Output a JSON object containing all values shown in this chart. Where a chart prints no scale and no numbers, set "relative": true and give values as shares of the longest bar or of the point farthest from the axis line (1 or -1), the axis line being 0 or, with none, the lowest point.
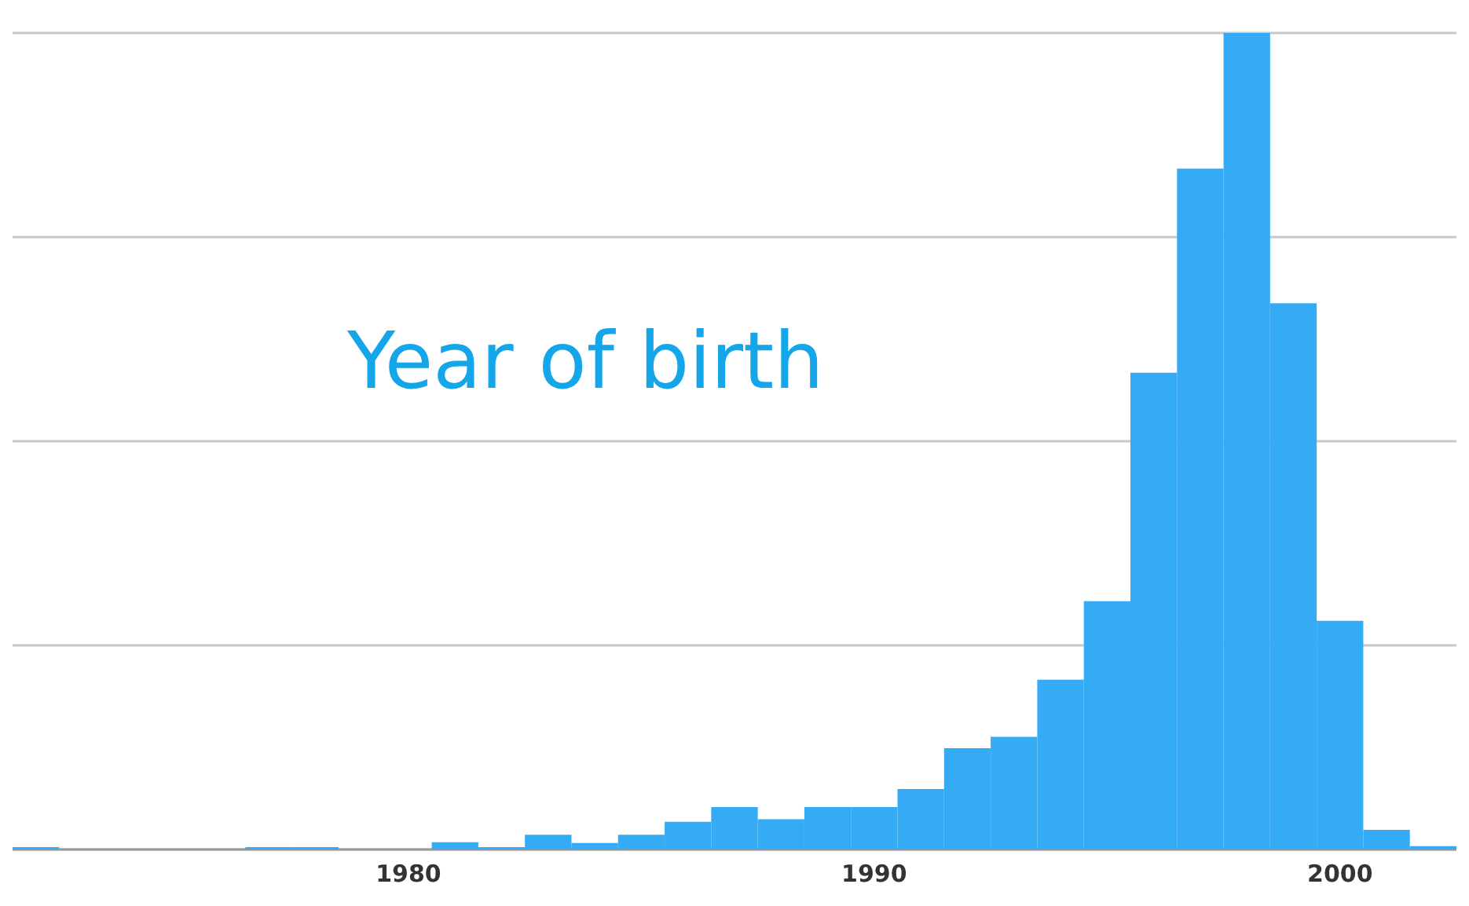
{
  "chart_data": {
    "type": "bar",
    "title": "Year of birth",
    "relative": true,
    "color": "#35abf5",
    "grid": "y",
    "categories": [
      null,
      null,
      null,
      null,
      null,
      null,
      null,
      null,
      "1980",
      null,
      null,
      null,
      null,
      null,
      null,
      null,
      null,
      null,
      "1990",
      null,
      null,
      null,
      null,
      null,
      null,
      null,
      null,
      null,
      "2000",
      null,
      null
    ],
    "values": [
      0.003,
      0,
      0,
      0,
      0,
      0.003,
      0.003,
      0,
      0,
      0.009,
      0.003,
      0.018,
      0.008,
      0.018,
      0.034,
      0.052,
      0.037,
      0.052,
      0.052,
      0.074,
      0.124,
      0.138,
      0.208,
      0.304,
      0.584,
      0.834,
      1,
      0.669,
      0.28,
      0.024,
      0.004
    ]
  }
}
